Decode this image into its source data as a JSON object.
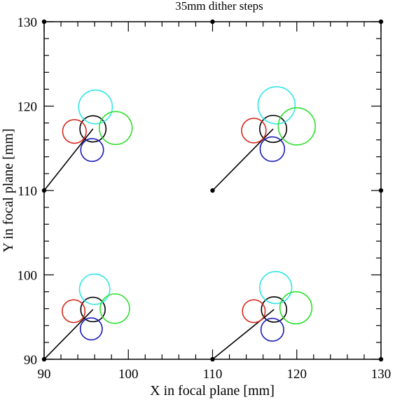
{
  "chart_data": {
    "type": "scatter",
    "title": "35mm dither steps",
    "xlabel": "X in focal plane [mm]",
    "ylabel": "Y in focal plane [mm]",
    "xlim": [
      90,
      130
    ],
    "ylim": [
      90,
      130
    ],
    "x_ticks": [
      90,
      100,
      110,
      120,
      130
    ],
    "y_ticks": [
      90,
      100,
      110,
      120,
      130
    ],
    "x_tick_labels": [
      "90",
      "100",
      "110",
      "120",
      "130"
    ],
    "y_tick_labels": [
      "90",
      "100",
      "110",
      "120",
      "130"
    ],
    "minor_tick_step": 2,
    "grid": false,
    "frame_points": [
      [
        90,
        90
      ],
      [
        110,
        90
      ],
      [
        130,
        90
      ],
      [
        90,
        110
      ],
      [
        110,
        110
      ],
      [
        130,
        110
      ],
      [
        90,
        130
      ],
      [
        110,
        130
      ],
      [
        130,
        130
      ]
    ],
    "groups": [
      {
        "origin": [
          90,
          90
        ],
        "end": [
          95.8,
          95.9
        ],
        "circles": [
          {
            "color": "black",
            "cx": 95.8,
            "cy": 95.9,
            "r": 1.45
          },
          {
            "color": "red",
            "cx": 93.5,
            "cy": 95.7,
            "r": 1.35
          },
          {
            "color": "blue",
            "cx": 95.6,
            "cy": 93.6,
            "r": 1.3
          },
          {
            "color": "cyan",
            "cx": 96.0,
            "cy": 98.3,
            "r": 1.8
          },
          {
            "color": "green",
            "cx": 98.4,
            "cy": 96.0,
            "r": 1.75
          }
        ]
      },
      {
        "origin": [
          90,
          110
        ],
        "end": [
          95.8,
          117.3
        ],
        "circles": [
          {
            "color": "black",
            "cx": 95.8,
            "cy": 117.3,
            "r": 1.55
          },
          {
            "color": "red",
            "cx": 93.6,
            "cy": 117.0,
            "r": 1.4
          },
          {
            "color": "blue",
            "cx": 95.7,
            "cy": 114.8,
            "r": 1.35
          },
          {
            "color": "cyan",
            "cx": 96.1,
            "cy": 119.9,
            "r": 2.0
          },
          {
            "color": "green",
            "cx": 98.5,
            "cy": 117.4,
            "r": 1.95
          }
        ]
      },
      {
        "origin": [
          110,
          90
        ],
        "end": [
          117.3,
          95.9
        ],
        "circles": [
          {
            "color": "black",
            "cx": 117.3,
            "cy": 95.9,
            "r": 1.5
          },
          {
            "color": "red",
            "cx": 114.9,
            "cy": 95.7,
            "r": 1.35
          },
          {
            "color": "blue",
            "cx": 117.1,
            "cy": 93.5,
            "r": 1.35
          },
          {
            "color": "cyan",
            "cx": 117.5,
            "cy": 98.5,
            "r": 1.9
          },
          {
            "color": "green",
            "cx": 119.9,
            "cy": 96.1,
            "r": 1.9
          }
        ]
      },
      {
        "origin": [
          110,
          110
        ],
        "end": [
          117.2,
          117.3
        ],
        "circles": [
          {
            "color": "black",
            "cx": 117.2,
            "cy": 117.3,
            "r": 1.6
          },
          {
            "color": "red",
            "cx": 114.9,
            "cy": 117.1,
            "r": 1.45
          },
          {
            "color": "blue",
            "cx": 117.1,
            "cy": 114.9,
            "r": 1.45
          },
          {
            "color": "cyan",
            "cx": 117.6,
            "cy": 120.1,
            "r": 2.2
          },
          {
            "color": "green",
            "cx": 120.0,
            "cy": 117.6,
            "r": 2.2
          }
        ]
      }
    ],
    "colors": {
      "black": "#000000",
      "red": "#d62a1e",
      "blue": "#1a1ab8",
      "cyan": "#33e6e6",
      "green": "#2ee02e"
    }
  }
}
